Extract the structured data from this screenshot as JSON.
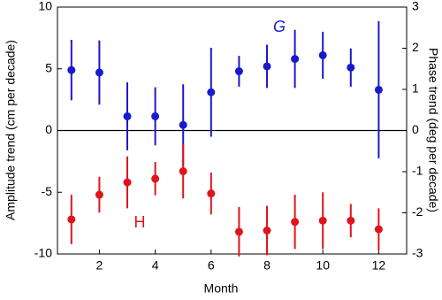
{
  "chart_data": {
    "type": "errorbar",
    "x_label": "Month",
    "y_label": "Amplitude trend (cm per decade)",
    "y2_label": "Phase trend (deg per decade)",
    "x": [
      1,
      2,
      3,
      4,
      5,
      6,
      7,
      8,
      9,
      10,
      11,
      12
    ],
    "xlim": [
      0.5,
      13
    ],
    "xticks": [
      2,
      4,
      6,
      8,
      10,
      12
    ],
    "ylim": [
      -10,
      10
    ],
    "yticks": [
      -10,
      -5,
      0,
      5,
      10
    ],
    "y2lim": [
      -3,
      3
    ],
    "y2ticks": [
      -3,
      -2,
      -1,
      0,
      1,
      2,
      3
    ],
    "hline": 0,
    "series": [
      {
        "name": "G",
        "color": "#1a1acc",
        "values": [
          4.9,
          4.7,
          1.15,
          1.15,
          0.45,
          3.1,
          4.8,
          5.2,
          5.8,
          6.1,
          5.1,
          3.3
        ],
        "errors": [
          2.45,
          2.6,
          2.75,
          2.35,
          3.3,
          3.6,
          1.25,
          1.75,
          2.35,
          1.9,
          1.55,
          5.55
        ]
      },
      {
        "name": "H",
        "color": "#e0141e",
        "values": [
          -7.2,
          -5.2,
          -4.2,
          -3.9,
          -3.3,
          -5.1,
          -8.2,
          -8.1,
          -7.4,
          -7.3,
          -7.3,
          -8.0
        ],
        "errors": [
          2.0,
          1.45,
          2.1,
          1.35,
          2.2,
          1.7,
          2.0,
          2.0,
          2.2,
          2.3,
          1.35,
          1.7
        ]
      }
    ]
  }
}
